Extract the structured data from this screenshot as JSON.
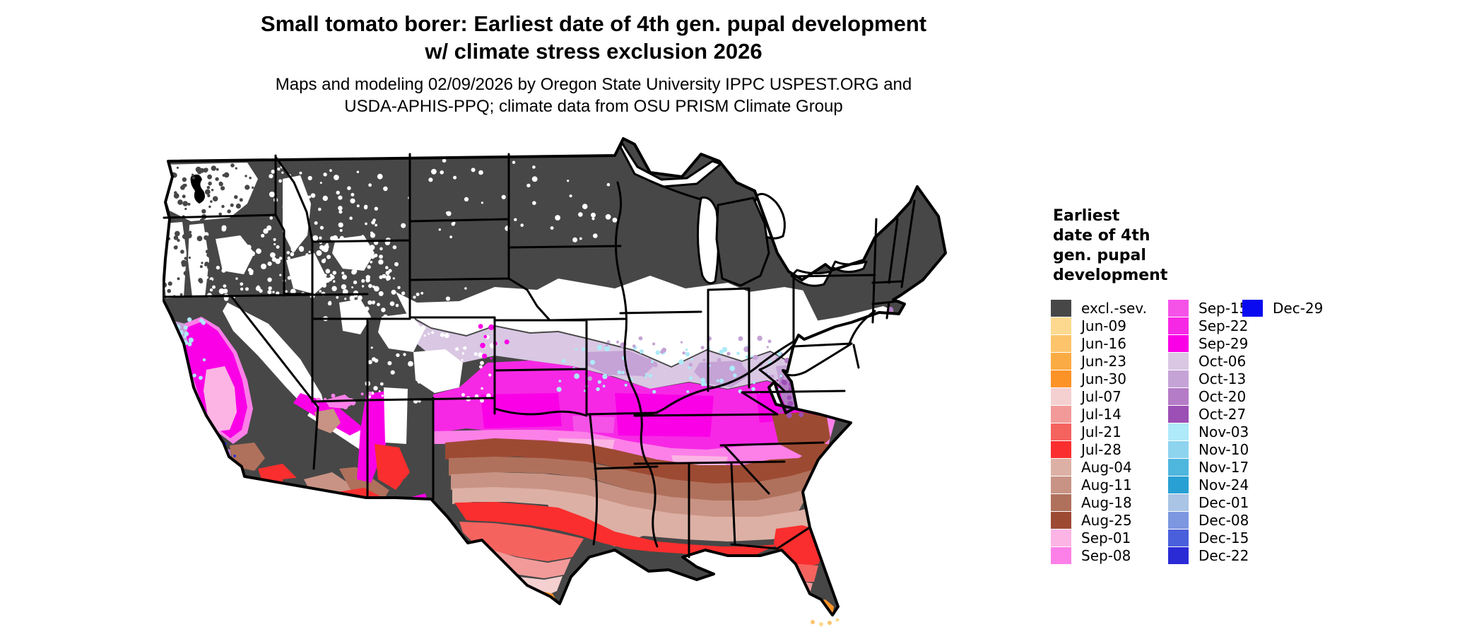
{
  "title": {
    "line1": "Small tomato borer: Earliest date of 4th gen. pupal development",
    "line2": "w/ climate stress exclusion 2026"
  },
  "subtitle": {
    "line1": "Maps and modeling 02/09/2026 by Oregon State University IPPC USPEST.ORG and",
    "line2": "USDA-APHIS-PPQ; climate data from OSU PRISM Climate Group"
  },
  "legend": {
    "title_lines": [
      "Earliest",
      "date of 4th",
      "gen. pupal",
      "development"
    ],
    "columns": [
      [
        {
          "label": "excl.-sev.",
          "color": "#474747"
        },
        {
          "label": "Jun-09",
          "color": "#fdd98f"
        },
        {
          "label": "Jun-16",
          "color": "#fdc46c"
        },
        {
          "label": "Jun-23",
          "color": "#fbab44"
        },
        {
          "label": "Jun-30",
          "color": "#fb9327"
        },
        {
          "label": "Jul-07",
          "color": "#f5d0d0"
        },
        {
          "label": "Jul-14",
          "color": "#f29a9a"
        },
        {
          "label": "Jul-21",
          "color": "#f5635f"
        },
        {
          "label": "Jul-28",
          "color": "#fa2e2e"
        },
        {
          "label": "Aug-04",
          "color": "#ddb0a5"
        },
        {
          "label": "Aug-11",
          "color": "#c89384"
        },
        {
          "label": "Aug-18",
          "color": "#b0715c"
        },
        {
          "label": "Aug-25",
          "color": "#9d4a33"
        },
        {
          "label": "Sep-01",
          "color": "#fcb4e4"
        },
        {
          "label": "Sep-08",
          "color": "#fc80e8"
        }
      ],
      [
        {
          "label": "Sep-15",
          "color": "#f553e8"
        },
        {
          "label": "Sep-22",
          "color": "#f728e5"
        },
        {
          "label": "Sep-29",
          "color": "#fa00e6"
        },
        {
          "label": "Oct-06",
          "color": "#d9c7e3"
        },
        {
          "label": "Oct-13",
          "color": "#c5a3d6"
        },
        {
          "label": "Oct-20",
          "color": "#b47cc6"
        },
        {
          "label": "Oct-27",
          "color": "#9c4fb4"
        },
        {
          "label": "Nov-03",
          "color": "#aeeaf8"
        },
        {
          "label": "Nov-10",
          "color": "#8ed4ef"
        },
        {
          "label": "Nov-17",
          "color": "#4fb6de"
        },
        {
          "label": "Nov-24",
          "color": "#28a0d4"
        },
        {
          "label": "Dec-01",
          "color": "#a9c4e4"
        },
        {
          "label": "Dec-08",
          "color": "#7d97e0"
        },
        {
          "label": "Dec-15",
          "color": "#4a5fdb"
        },
        {
          "label": "Dec-22",
          "color": "#2b2bd6"
        }
      ],
      [
        {
          "label": "Dec-29",
          "color": "#0a0af0"
        }
      ]
    ]
  },
  "map": {
    "region": "Contiguous United States",
    "excluded_color": "#474747",
    "no_data_color": "#ffffff",
    "state_border_color": "#000000"
  }
}
